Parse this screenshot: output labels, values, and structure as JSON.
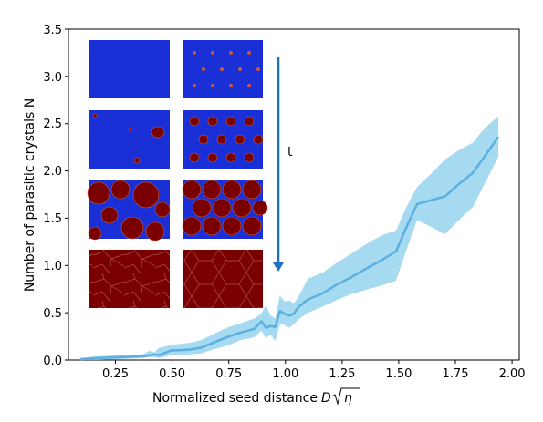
{
  "chart_data": {
    "type": "line",
    "xlabel_prefix": "Normalized seed distance",
    "xlabel_symbol": "D",
    "xlabel_radicand": "η",
    "ylabel": "Number of parasitic crystals N",
    "xlim": [
      0.18,
      2.12
    ],
    "ylim": [
      0,
      3.5
    ],
    "xticks": [
      "0.25",
      "0.50",
      "0.75",
      "1.00",
      "1.25",
      "1.50",
      "1.75",
      "2.00"
    ],
    "yticks": [
      "0.0",
      "0.5",
      "1.0",
      "1.5",
      "2.0",
      "2.5",
      "3.0",
      "3.5"
    ],
    "grid": false,
    "series_color": "#5ab0e0",
    "band_color": "#87ceeb",
    "x": [
      0.23,
      0.3,
      0.4,
      0.5,
      0.53,
      0.55,
      0.57,
      0.59,
      0.62,
      0.7,
      0.75,
      0.8,
      0.86,
      0.92,
      0.98,
      1.01,
      1.03,
      1.05,
      1.07,
      1.09,
      1.11,
      1.13,
      1.15,
      1.17,
      1.21,
      1.27,
      1.33,
      1.4,
      1.47,
      1.53,
      1.59,
      1.63,
      1.68,
      1.74,
      1.8,
      1.86,
      1.92,
      1.97,
      2.03
    ],
    "y": [
      0.01,
      0.02,
      0.03,
      0.04,
      0.05,
      0.06,
      0.05,
      0.07,
      0.1,
      0.11,
      0.13,
      0.18,
      0.24,
      0.29,
      0.33,
      0.41,
      0.34,
      0.36,
      0.35,
      0.52,
      0.49,
      0.47,
      0.49,
      0.56,
      0.64,
      0.7,
      0.79,
      0.88,
      0.98,
      1.06,
      1.15,
      1.38,
      1.65,
      1.69,
      1.73,
      1.86,
      1.98,
      2.15,
      2.36
    ],
    "y_upper": [
      0.02,
      0.04,
      0.05,
      0.06,
      0.1,
      0.08,
      0.13,
      0.14,
      0.16,
      0.18,
      0.21,
      0.27,
      0.34,
      0.39,
      0.44,
      0.49,
      0.58,
      0.47,
      0.44,
      0.68,
      0.62,
      0.63,
      0.6,
      0.67,
      0.86,
      0.92,
      1.02,
      1.13,
      1.24,
      1.32,
      1.37,
      1.6,
      1.83,
      1.97,
      2.12,
      2.22,
      2.3,
      2.45,
      2.58
    ],
    "y_lower": [
      0.0,
      0.0,
      0.01,
      0.02,
      0.03,
      0.03,
      0.02,
      0.03,
      0.05,
      0.06,
      0.07,
      0.11,
      0.15,
      0.21,
      0.24,
      0.31,
      0.23,
      0.27,
      0.2,
      0.38,
      0.37,
      0.34,
      0.38,
      0.43,
      0.5,
      0.56,
      0.63,
      0.7,
      0.75,
      0.79,
      0.84,
      1.13,
      1.48,
      1.41,
      1.33,
      1.48,
      1.62,
      1.86,
      2.15
    ],
    "annotation": "t",
    "arrow_color": "#1f6fbf"
  },
  "insets": {
    "blue": "#1a2fd6",
    "red": "#7a0000",
    "seed": "#c85a3a"
  }
}
